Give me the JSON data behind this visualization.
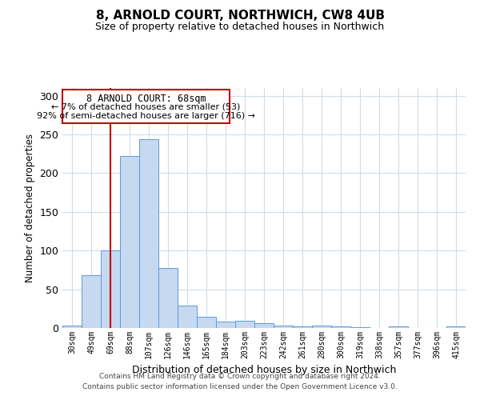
{
  "title": "8, ARNOLD COURT, NORTHWICH, CW8 4UB",
  "subtitle": "Size of property relative to detached houses in Northwich",
  "xlabel": "Distribution of detached houses by size in Northwich",
  "ylabel": "Number of detached properties",
  "bar_labels": [
    "30sqm",
    "49sqm",
    "69sqm",
    "88sqm",
    "107sqm",
    "126sqm",
    "146sqm",
    "165sqm",
    "184sqm",
    "203sqm",
    "223sqm",
    "242sqm",
    "261sqm",
    "280sqm",
    "300sqm",
    "319sqm",
    "338sqm",
    "357sqm",
    "377sqm",
    "396sqm",
    "415sqm"
  ],
  "bar_values": [
    3,
    68,
    100,
    222,
    244,
    77,
    29,
    14,
    8,
    9,
    6,
    3,
    2,
    3,
    2,
    1,
    0,
    2,
    0,
    0,
    2
  ],
  "bar_color": "#c6d9f1",
  "bar_edge_color": "#5b9bd5",
  "vline_x": 2,
  "vline_color": "#c00000",
  "ylim": [
    0,
    310
  ],
  "yticks": [
    0,
    50,
    100,
    150,
    200,
    250,
    300
  ],
  "annotation_title": "8 ARNOLD COURT: 68sqm",
  "annotation_line1": "← 7% of detached houses are smaller (53)",
  "annotation_line2": "92% of semi-detached houses are larger (716) →",
  "annotation_box_color": "#c00000",
  "footer_line1": "Contains HM Land Registry data © Crown copyright and database right 2024.",
  "footer_line2": "Contains public sector information licensed under the Open Government Licence v3.0.",
  "bg_color": "#ffffff",
  "grid_color": "#d0dce8"
}
